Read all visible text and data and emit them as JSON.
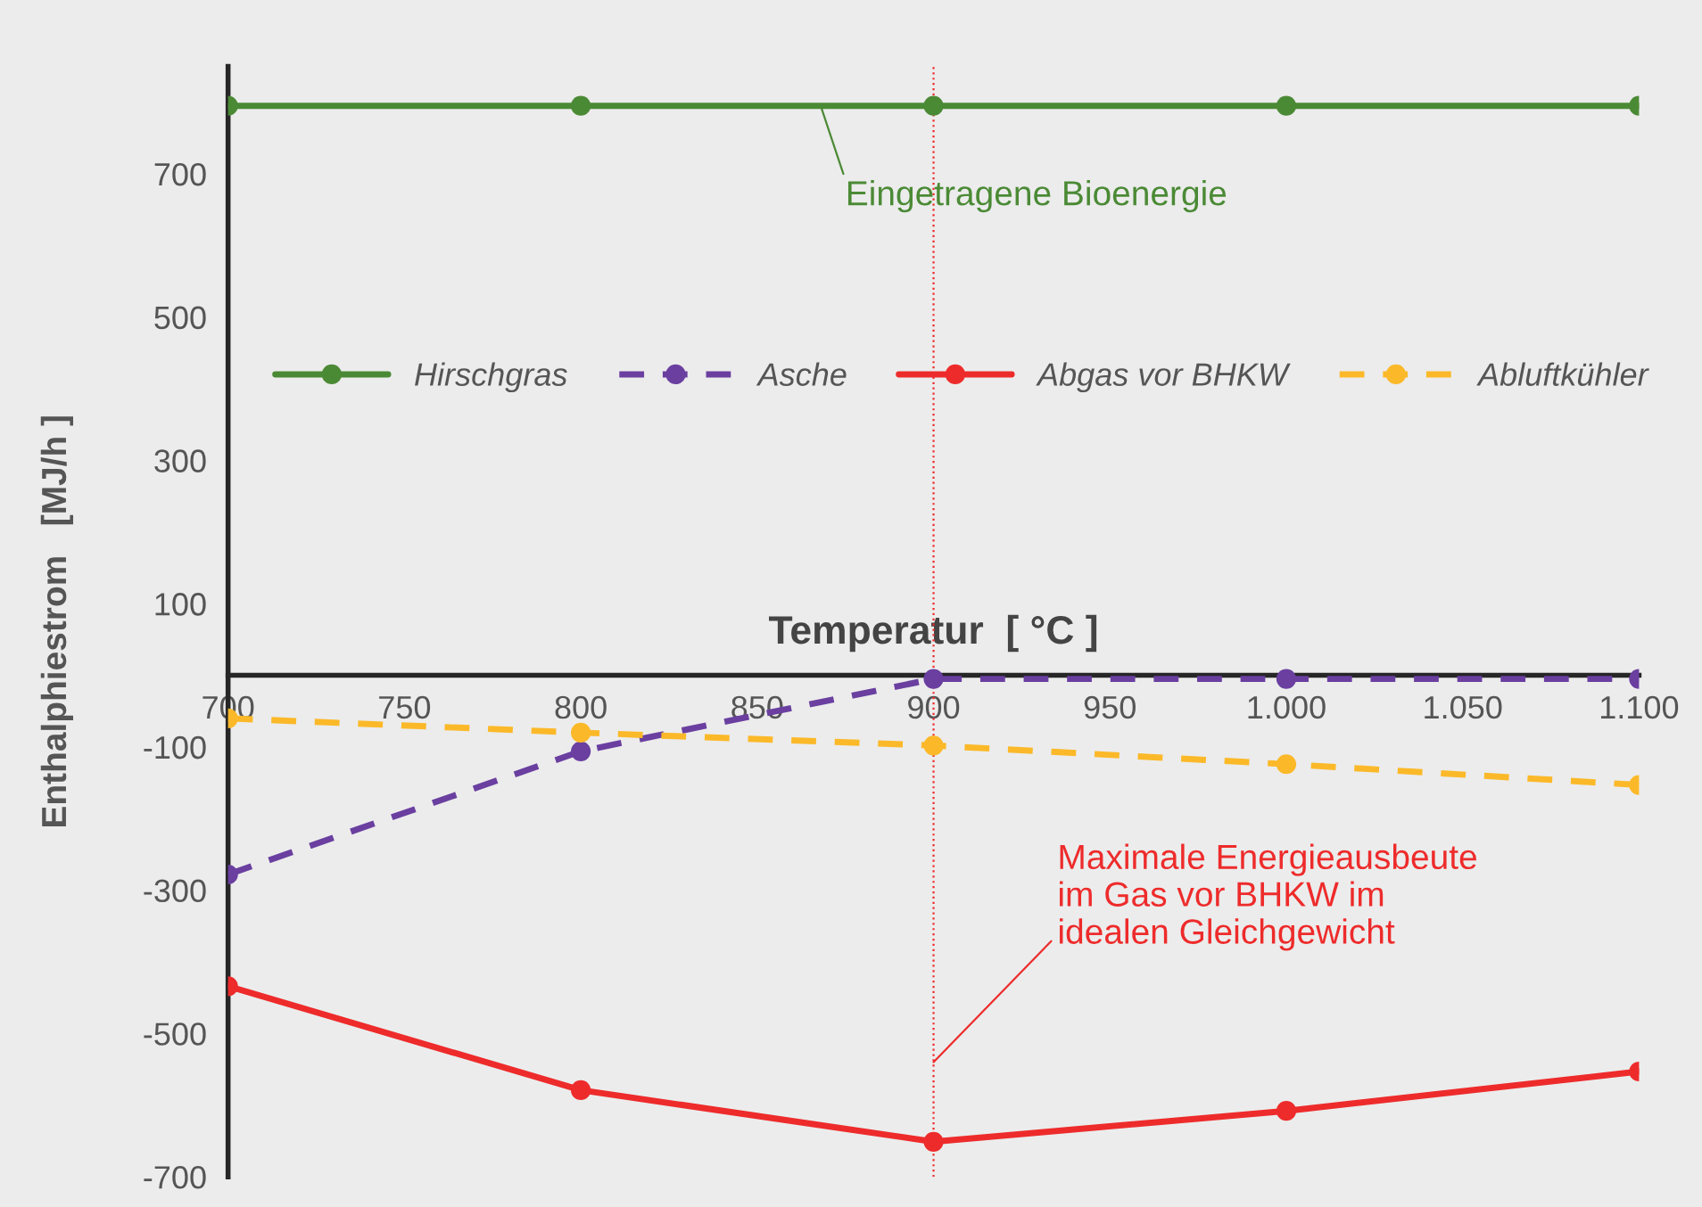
{
  "chart_data": {
    "type": "line",
    "xlabel": "Temperatur  [ °C ]",
    "ylabel": "Enthalphiestrom   [MJ/h ]",
    "x": [
      700,
      800,
      900,
      1000,
      1100
    ],
    "series": [
      {
        "name": "Hirschgras",
        "color": "#4b8a35",
        "values": [
          795,
          795,
          795,
          795,
          795
        ],
        "line_style": "solid"
      },
      {
        "name": "Asche",
        "color": "#6a3fa0",
        "values": [
          -278,
          -106,
          -5,
          -5,
          -5
        ],
        "line_style": "dashed"
      },
      {
        "name": "Abgas vor BHKW",
        "color": "#ee2b2b",
        "values": [
          -434,
          -579,
          -651,
          -608,
          -553
        ],
        "line_style": "solid"
      },
      {
        "name": "Abluftkühler",
        "color": "#fbb929",
        "values": [
          -60,
          -80,
          -98,
          -124,
          -153
        ],
        "line_style": "dashed"
      }
    ],
    "marker": "circle",
    "xlim": [
      700,
      1100
    ],
    "xticks": [
      700,
      750,
      800,
      850,
      900,
      950,
      {
        "value": 1000,
        "label": "1.000"
      },
      {
        "value": 1050,
        "label": "1.050"
      },
      {
        "value": 1100,
        "label": "1.100"
      }
    ],
    "ylim": [
      -700,
      850
    ],
    "yticks": [
      -700,
      -500,
      -300,
      -100,
      100,
      300,
      500,
      700
    ],
    "ref_lines": [
      {
        "axis": "x",
        "value": 900,
        "color": "#ee2b2b",
        "line_style": "dotted"
      }
    ],
    "annotations": [
      {
        "text": "Eingetragene Bioenergie",
        "x": 868,
        "y": 795
      },
      {
        "text": "Maximale Energieausbeute\nim Gas vor BHKW im\nidealen Gleichgewicht",
        "x": 900,
        "y": -540
      }
    ],
    "grid": false,
    "legend": "top"
  }
}
